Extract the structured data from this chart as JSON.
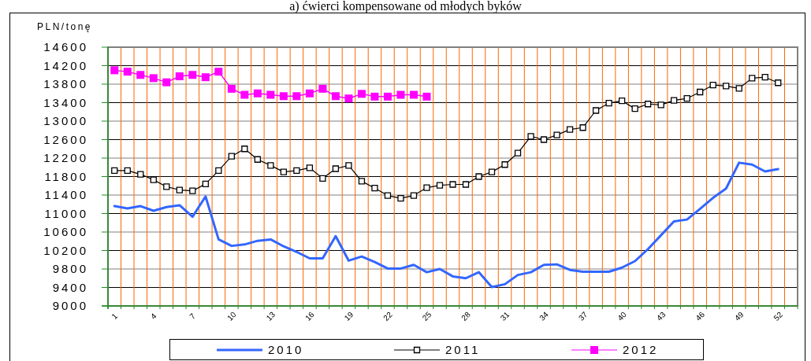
{
  "chart_data": {
    "type": "line",
    "title": "a) ćwierci kompensowane od młodych byków",
    "ylabel": "PLN/tonę",
    "categories": [
      "1",
      null,
      null,
      "4",
      null,
      null,
      "7",
      null,
      null,
      "10",
      null,
      null,
      "13",
      null,
      null,
      "16",
      null,
      null,
      "19",
      null,
      null,
      "22",
      null,
      null,
      "25",
      null,
      null,
      "28",
      null,
      null,
      "31",
      null,
      null,
      "34",
      null,
      null,
      "37",
      null,
      null,
      "40",
      null,
      null,
      "43",
      null,
      null,
      "46",
      null,
      null,
      "49",
      null,
      null,
      "52",
      null
    ],
    "ylim": [
      9000,
      14600
    ],
    "yticks": [
      9000,
      9400,
      9800,
      10200,
      10600,
      11000,
      11400,
      11800,
      12200,
      12600,
      13000,
      13400,
      13800,
      14200,
      14600
    ],
    "grid": true,
    "legend": "bottom",
    "series": [
      {
        "name": "2010",
        "color": "#3366ff",
        "marker": "none",
        "values": [
          11160,
          11110,
          11160,
          11060,
          11140,
          11180,
          10930,
          11370,
          10440,
          10300,
          10330,
          10410,
          10440,
          10290,
          10170,
          10030,
          10030,
          10510,
          9980,
          10070,
          9950,
          9810,
          9810,
          9890,
          9730,
          9800,
          9640,
          9600,
          9730,
          9410,
          9470,
          9670,
          9730,
          9890,
          9900,
          9780,
          9740,
          9740,
          9740,
          9830,
          9970,
          10230,
          10530,
          10830,
          10870,
          11100,
          11340,
          11540,
          12100,
          12060,
          11910,
          11960,
          null
        ]
      },
      {
        "name": "2011",
        "color": "#000000",
        "marker": "square",
        "values": [
          11930,
          11930,
          11850,
          11730,
          11580,
          11510,
          11490,
          11640,
          11930,
          12240,
          12400,
          12170,
          12040,
          11900,
          11930,
          11990,
          11760,
          11970,
          12040,
          11700,
          11550,
          11390,
          11330,
          11390,
          11560,
          11610,
          11630,
          11630,
          11800,
          11900,
          12060,
          12310,
          12670,
          12600,
          12700,
          12820,
          12860,
          13230,
          13390,
          13440,
          13270,
          13370,
          13350,
          13450,
          13490,
          13630,
          13780,
          13760,
          13710,
          13930,
          13950,
          13830,
          null
        ]
      },
      {
        "name": "2012",
        "color": "#ff00ff",
        "marker": "square",
        "values": [
          14100,
          14070,
          14000,
          13930,
          13840,
          13970,
          14000,
          13950,
          14070,
          13700,
          13570,
          13600,
          13570,
          13540,
          13540,
          13600,
          13700,
          13540,
          13490,
          13590,
          13530,
          13530,
          13570,
          13570,
          13530,
          null,
          null,
          null,
          null,
          null,
          null,
          null,
          null,
          null,
          null,
          null,
          null,
          null,
          null,
          null,
          null,
          null,
          null,
          null,
          null,
          null,
          null,
          null,
          null,
          null,
          null,
          null,
          null
        ]
      }
    ]
  }
}
